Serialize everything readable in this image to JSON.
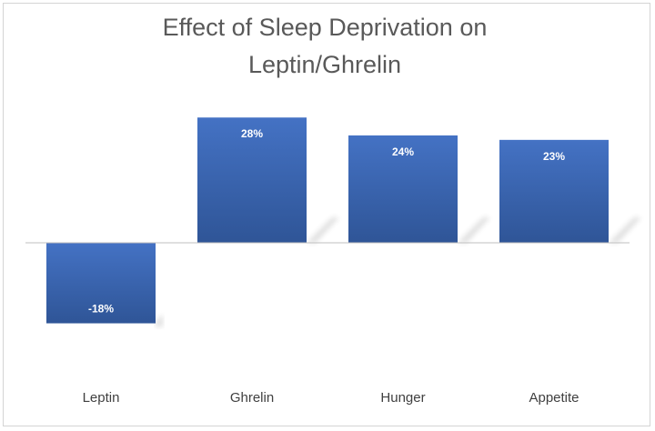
{
  "chart_data": {
    "type": "bar",
    "title": "Effect of Sleep Deprivation on Leptin/Ghrelin",
    "title_lines": [
      "Effect of Sleep Deprivation on",
      "Leptin/Ghrelin"
    ],
    "categories": [
      "Leptin",
      "Ghrelin",
      "Hunger",
      "Appetite"
    ],
    "values": [
      -18,
      28,
      24,
      23
    ],
    "data_labels": [
      "-18%",
      "28%",
      "24%",
      "23%"
    ],
    "xlabel": "",
    "ylabel": "",
    "ylim": [
      -20,
      30
    ],
    "grid": false,
    "legend": "none",
    "bar_color": "#4472C4",
    "bar_color_dark": "#2F5597",
    "axis_color": "#bfbfbf"
  }
}
